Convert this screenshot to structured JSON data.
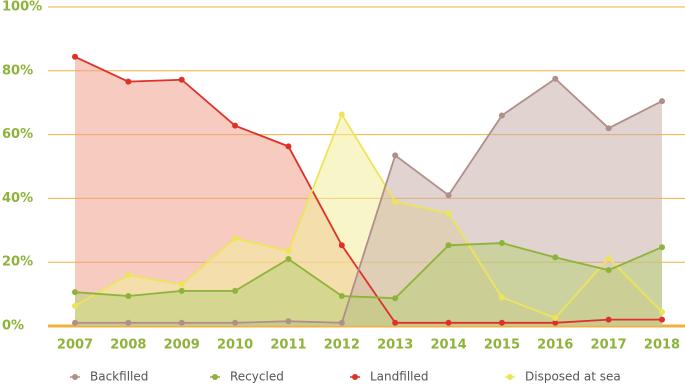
{
  "chart_data": {
    "type": "area",
    "categories": [
      "2007",
      "2008",
      "2009",
      "2010",
      "2011",
      "2012",
      "2013",
      "2014",
      "2015",
      "2016",
      "2017",
      "2018"
    ],
    "series": [
      {
        "name": "Landfilled",
        "color": "#e0302a",
        "fill": "#f0a08a",
        "values": [
          84.4,
          76.6,
          77.2,
          62.8,
          56.3,
          25.3,
          1,
          1,
          1,
          1,
          2,
          2
        ]
      },
      {
        "name": "Disposed at sea",
        "color": "#ece55a",
        "fill": "#f3ee9a",
        "values": [
          6.3,
          16,
          13,
          27.5,
          23.5,
          66.3,
          39,
          35.3,
          9,
          2.5,
          21.3,
          4.4
        ]
      },
      {
        "name": "Backfilled",
        "color": "#b08f8a",
        "fill": "#c8aea8",
        "values": [
          1,
          1,
          1,
          1,
          1.5,
          1,
          53.5,
          41,
          66,
          77.5,
          62,
          70.5
        ]
      },
      {
        "name": "Recycled",
        "color": "#8db33a",
        "fill": "#bcd07a",
        "values": [
          10.6,
          9.4,
          11,
          11,
          21,
          9.4,
          8.7,
          25.3,
          26,
          21.5,
          17.5,
          24.7
        ]
      }
    ],
    "legend_order": [
      2,
      3,
      0,
      1
    ],
    "ylim": [
      0,
      100
    ],
    "yticks": [
      {
        "value": 0,
        "label": "0%"
      },
      {
        "value": 20,
        "label": "20%"
      },
      {
        "value": 40,
        "label": "40%"
      },
      {
        "value": 60,
        "label": "60%"
      },
      {
        "value": 80,
        "label": "80%"
      },
      {
        "value": 100,
        "label": "100%"
      }
    ],
    "grid": true,
    "grid_color": "#f0b040",
    "legend": "bottom"
  }
}
